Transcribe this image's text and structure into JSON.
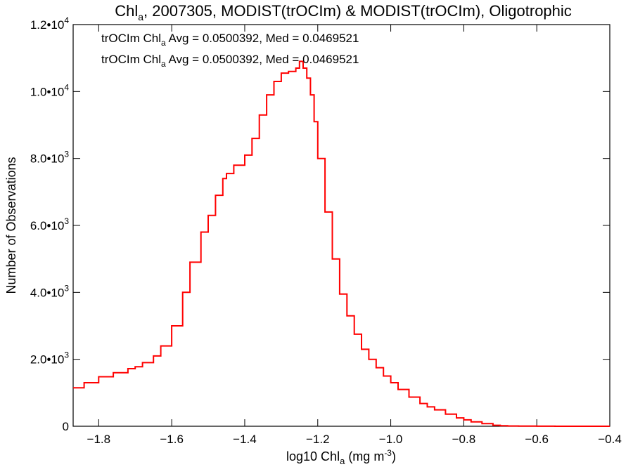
{
  "title": {
    "pre": "Chl",
    "sub": "a",
    "post": ", 2007305, MODIST(trOCIm) & MODIST(trOCIm), Oligotrophic"
  },
  "annotations": [
    {
      "pre": "trOCIm Chl",
      "sub": "a",
      "post": " Avg = 0.0500392, Med = 0.0469521",
      "color": "#000000"
    },
    {
      "pre": "trOCIm Chl",
      "sub": "a",
      "post": " Avg = 0.0500392, Med = 0.0469521",
      "color": "#ff0000"
    }
  ],
  "xlabel": {
    "pre": "log10 Chl",
    "sub": "a",
    "post": " (mg m",
    "sup": "-3",
    "end": ")"
  },
  "ylabel": "Number of Observations",
  "colors": {
    "series_line": "#ff0000",
    "axes": "#000000"
  },
  "chart_data": {
    "type": "line",
    "style": "step histogram",
    "xlim": [
      -1.87,
      -0.4
    ],
    "ylim": [
      0,
      12000
    ],
    "xticks": [
      {
        "value": -1.8,
        "label": "−1.8"
      },
      {
        "value": -1.6,
        "label": "−1.6"
      },
      {
        "value": -1.4,
        "label": "−1.4"
      },
      {
        "value": -1.2,
        "label": "−1.2"
      },
      {
        "value": -1.0,
        "label": "−1.0"
      },
      {
        "value": -0.8,
        "label": "−0.8"
      },
      {
        "value": -0.6,
        "label": "−0.6"
      },
      {
        "value": -0.4,
        "label": "−0.4"
      }
    ],
    "yticks": [
      {
        "value": 0,
        "mant": "0",
        "exp": ""
      },
      {
        "value": 2000,
        "mant": "2.0•10",
        "exp": "3"
      },
      {
        "value": 4000,
        "mant": "4.0•10",
        "exp": "3"
      },
      {
        "value": 6000,
        "mant": "6.0•10",
        "exp": "3"
      },
      {
        "value": 8000,
        "mant": "8.0•10",
        "exp": "3"
      },
      {
        "value": 10000,
        "mant": "1.0•10",
        "exp": "4"
      },
      {
        "value": 12000,
        "mant": "1.2•10",
        "exp": "4"
      }
    ],
    "series": [
      {
        "x": [
          -1.87,
          -1.84,
          -1.8,
          -1.76,
          -1.72,
          -1.7,
          -1.68,
          -1.65,
          -1.63,
          -1.6,
          -1.57,
          -1.55,
          -1.52,
          -1.5,
          -1.48,
          -1.46,
          -1.45,
          -1.43,
          -1.4,
          -1.38,
          -1.36,
          -1.34,
          -1.32,
          -1.3,
          -1.28,
          -1.26,
          -1.25,
          -1.24,
          -1.23,
          -1.22,
          -1.21,
          -1.2,
          -1.18,
          -1.16,
          -1.14,
          -1.12,
          -1.1,
          -1.08,
          -1.06,
          -1.04,
          -1.02,
          -1.0,
          -0.98,
          -0.95,
          -0.92,
          -0.9,
          -0.88,
          -0.85,
          -0.82,
          -0.8,
          -0.78,
          -0.75,
          -0.72,
          -0.7,
          -0.68,
          -0.65,
          -0.6,
          -0.55,
          -0.5,
          -0.45,
          -0.4
        ],
        "y": [
          1150,
          1300,
          1480,
          1600,
          1720,
          1780,
          1900,
          2100,
          2400,
          3000,
          4000,
          4900,
          5800,
          6300,
          6900,
          7400,
          7550,
          7800,
          8100,
          8600,
          9300,
          9900,
          10300,
          10550,
          10600,
          10700,
          10900,
          10700,
          10400,
          9900,
          9100,
          8000,
          6400,
          5000,
          3950,
          3300,
          2750,
          2300,
          2000,
          1750,
          1500,
          1300,
          1100,
          870,
          680,
          580,
          490,
          360,
          250,
          190,
          130,
          80,
          30,
          15,
          8,
          4,
          2,
          1,
          0,
          0,
          0
        ]
      }
    ]
  }
}
